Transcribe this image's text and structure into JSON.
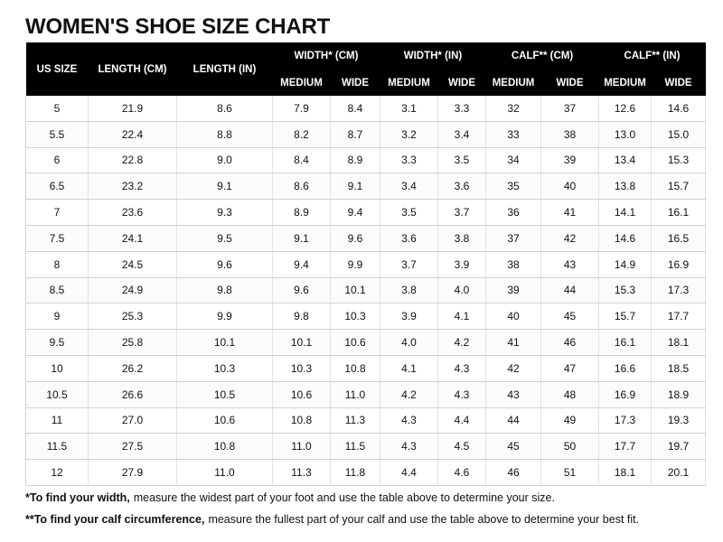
{
  "header": {
    "title": "WOMEN'S SHOE SIZE CHART"
  },
  "table": {
    "columns": [
      {
        "label": "US SIZE"
      },
      {
        "label": "LENGTH (CM)"
      },
      {
        "label": "LENGTH (IN)"
      },
      {
        "label": "WIDTH* (CM)",
        "sub": [
          "MEDIUM",
          "WIDE"
        ]
      },
      {
        "label": "WIDTH* (IN)",
        "sub": [
          "MEDIUM",
          "WIDE"
        ]
      },
      {
        "label": "CALF** (CM)",
        "sub": [
          "MEDIUM",
          "WIDE"
        ]
      },
      {
        "label": "CALF** (IN)",
        "sub": [
          "MEDIUM",
          "WIDE"
        ]
      }
    ],
    "rows": [
      [
        "5",
        "21.9",
        "8.6",
        "7.9",
        "8.4",
        "3.1",
        "3.3",
        "32",
        "37",
        "12.6",
        "14.6"
      ],
      [
        "5.5",
        "22.4",
        "8.8",
        "8.2",
        "8.7",
        "3.2",
        "3.4",
        "33",
        "38",
        "13.0",
        "15.0"
      ],
      [
        "6",
        "22.8",
        "9.0",
        "8.4",
        "8.9",
        "3.3",
        "3.5",
        "34",
        "39",
        "13.4",
        "15.3"
      ],
      [
        "6.5",
        "23.2",
        "9.1",
        "8.6",
        "9.1",
        "3.4",
        "3.6",
        "35",
        "40",
        "13.8",
        "15.7"
      ],
      [
        "7",
        "23.6",
        "9.3",
        "8.9",
        "9.4",
        "3.5",
        "3.7",
        "36",
        "41",
        "14.1",
        "16.1"
      ],
      [
        "7.5",
        "24.1",
        "9.5",
        "9.1",
        "9.6",
        "3.6",
        "3.8",
        "37",
        "42",
        "14.6",
        "16.5"
      ],
      [
        "8",
        "24.5",
        "9.6",
        "9.4",
        "9.9",
        "3.7",
        "3.9",
        "38",
        "43",
        "14.9",
        "16.9"
      ],
      [
        "8.5",
        "24.9",
        "9.8",
        "9.6",
        "10.1",
        "3.8",
        "4.0",
        "39",
        "44",
        "15.3",
        "17.3"
      ],
      [
        "9",
        "25.3",
        "9.9",
        "9.8",
        "10.3",
        "3.9",
        "4.1",
        "40",
        "45",
        "15.7",
        "17.7"
      ],
      [
        "9.5",
        "25.8",
        "10.1",
        "10.1",
        "10.6",
        "4.0",
        "4.2",
        "41",
        "46",
        "16.1",
        "18.1"
      ],
      [
        "10",
        "26.2",
        "10.3",
        "10.3",
        "10.8",
        "4.1",
        "4.3",
        "42",
        "47",
        "16.6",
        "18.5"
      ],
      [
        "10.5",
        "26.6",
        "10.5",
        "10.6",
        "11.0",
        "4.2",
        "4.3",
        "43",
        "48",
        "16.9",
        "18.9"
      ],
      [
        "11",
        "27.0",
        "10.6",
        "10.8",
        "11.3",
        "4.3",
        "4.4",
        "44",
        "49",
        "17.3",
        "19.3"
      ],
      [
        "11.5",
        "27.5",
        "10.8",
        "11.0",
        "11.5",
        "4.3",
        "4.5",
        "45",
        "50",
        "17.7",
        "19.7"
      ],
      [
        "12",
        "27.9",
        "11.0",
        "11.3",
        "11.8",
        "4.4",
        "4.6",
        "46",
        "51",
        "18.1",
        "20.1"
      ]
    ]
  },
  "notes": [
    {
      "bold": "*To find your width,",
      "text": "measure the widest part of your foot and use the table above to determine your size."
    },
    {
      "bold": "**To find your calf circumference,",
      "text": "measure the fullest part of your calf and use the table above to determine your best fit."
    }
  ]
}
